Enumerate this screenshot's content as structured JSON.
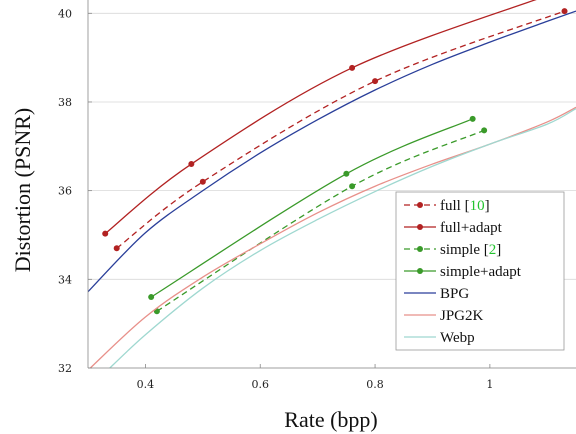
{
  "chart_data": {
    "type": "line",
    "title": "",
    "xlabel": "Rate (bpp)",
    "ylabel": "Distortion (PSNR)",
    "xlim": [
      0.3,
      1.15
    ],
    "ylim": [
      32,
      40.3
    ],
    "xticks": [
      0.4,
      0.6,
      0.8,
      1.0
    ],
    "xtick_labels": [
      "0.4",
      "0.6",
      "0.8",
      "1"
    ],
    "yticks": [
      32,
      34,
      36,
      38,
      40
    ],
    "ytick_labels": [
      "32",
      "34",
      "36",
      "38",
      "40"
    ],
    "grid": "horizontal",
    "legend_placement": "bottom-right",
    "series": [
      {
        "name": "full",
        "cite": "10",
        "color": "#b22222",
        "dash": "dashed",
        "markers": true,
        "x": [
          0.35,
          0.5,
          0.8,
          1.13
        ],
        "y": [
          34.7,
          36.2,
          38.47,
          40.05
        ]
      },
      {
        "name": "full+adapt",
        "cite": "",
        "color": "#b22222",
        "dash": "solid",
        "markers": true,
        "x": [
          0.33,
          0.48,
          0.76,
          1.1
        ],
        "y": [
          35.03,
          36.6,
          38.77,
          40.4
        ]
      },
      {
        "name": "simple",
        "cite": "2",
        "color": "#3a9a2a",
        "dash": "dashed",
        "markers": true,
        "x": [
          0.42,
          0.76,
          0.99
        ],
        "y": [
          33.28,
          36.1,
          37.36
        ]
      },
      {
        "name": "simple+adapt",
        "cite": "",
        "color": "#3a9a2a",
        "dash": "solid",
        "markers": true,
        "x": [
          0.41,
          0.75,
          0.97
        ],
        "y": [
          33.6,
          36.38,
          37.62
        ]
      },
      {
        "name": "BPG",
        "cite": "",
        "color": "#2a3f9a",
        "dash": "solid",
        "markers": false,
        "x": [
          0.3,
          0.4,
          0.5,
          0.6,
          0.7,
          0.8,
          0.9,
          1.0,
          1.1,
          1.15
        ],
        "y": [
          33.72,
          35.05,
          36.0,
          36.85,
          37.6,
          38.27,
          38.85,
          39.35,
          39.82,
          40.05
        ]
      },
      {
        "name": "JPG2K",
        "cite": "",
        "color": "#e8908a",
        "dash": "solid",
        "markers": false,
        "x": [
          0.3,
          0.4,
          0.5,
          0.6,
          0.7,
          0.8,
          0.9,
          1.0,
          1.1,
          1.15
        ],
        "y": [
          31.95,
          33.15,
          34.05,
          34.8,
          35.5,
          36.1,
          36.6,
          37.05,
          37.55,
          37.88
        ]
      },
      {
        "name": "Webp",
        "cite": "",
        "color": "#9fd8d0",
        "dash": "solid",
        "markers": false,
        "x": [
          0.33,
          0.4,
          0.5,
          0.6,
          0.7,
          0.8,
          0.9,
          1.0,
          1.1,
          1.15
        ],
        "y": [
          31.9,
          32.75,
          33.8,
          34.65,
          35.35,
          35.98,
          36.55,
          37.05,
          37.5,
          37.85
        ]
      }
    ]
  }
}
